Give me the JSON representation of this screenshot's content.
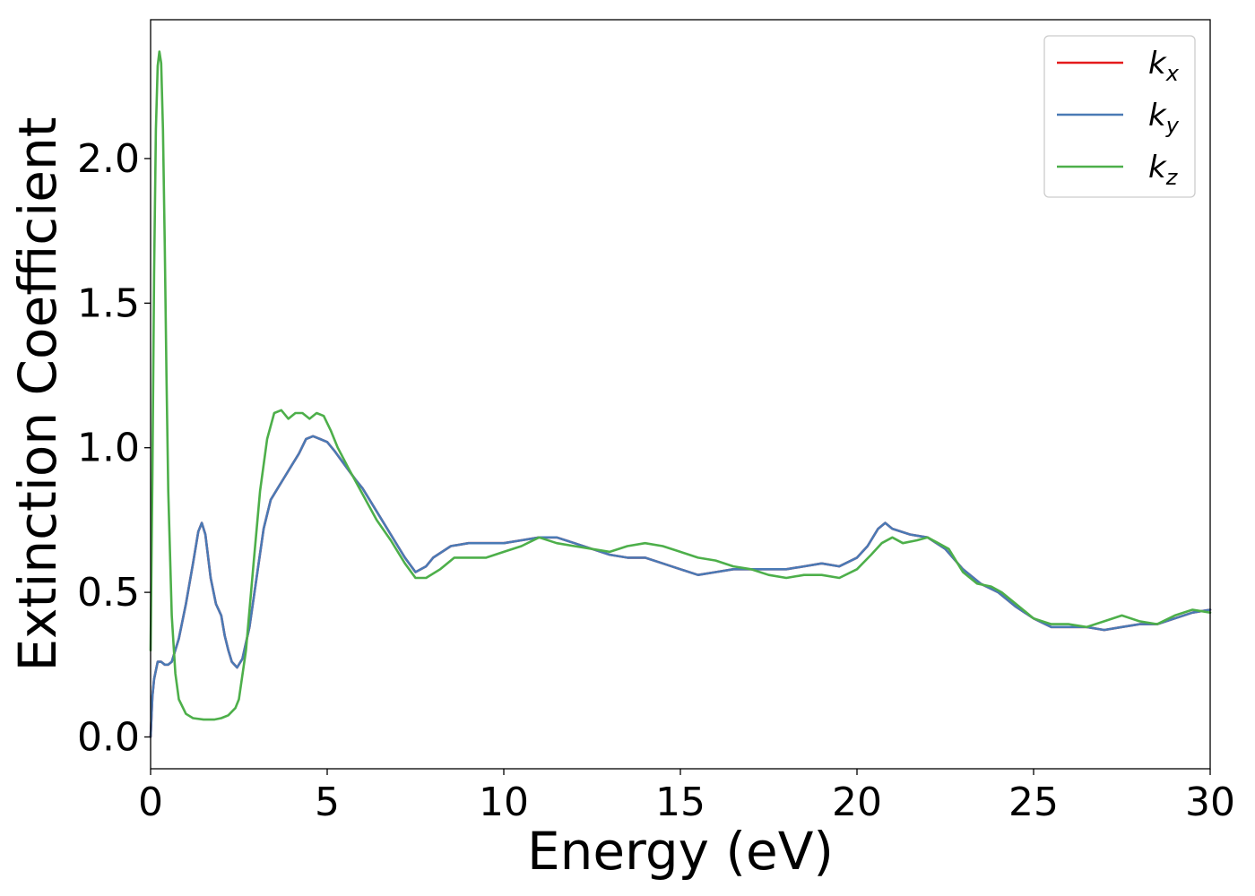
{
  "chart_data": {
    "type": "line",
    "title": "",
    "xlabel": "Energy (eV)",
    "ylabel": "Extinction Coefficient",
    "xlim": [
      0,
      30
    ],
    "ylim": [
      -0.11,
      2.48
    ],
    "xticks": [
      0,
      5,
      10,
      15,
      20,
      25,
      30
    ],
    "xtick_labels": [
      "0",
      "5",
      "10",
      "15",
      "20",
      "25",
      "30"
    ],
    "yticks": [
      0.0,
      0.5,
      1.0,
      1.5,
      2.0
    ],
    "ytick_labels": [
      "0.0",
      "0.5",
      "1.0",
      "1.5",
      "2.0"
    ],
    "grid": false,
    "legend_position": "top-right",
    "series": [
      {
        "name": "k_x",
        "legend_base": "k",
        "legend_sub": "x",
        "color": "#e41a1c",
        "x": [
          0,
          0.05,
          0.1,
          0.2,
          0.3,
          0.4,
          0.5,
          0.6,
          0.8,
          1.0,
          1.2,
          1.35,
          1.45,
          1.55,
          1.7,
          1.85,
          2.0,
          2.1,
          2.2,
          2.3,
          2.45,
          2.6,
          2.8,
          3.0,
          3.2,
          3.4,
          3.6,
          3.8,
          4.0,
          4.2,
          4.4,
          4.6,
          4.8,
          5.0,
          5.2,
          5.5,
          5.8,
          6.0,
          6.2,
          6.5,
          6.8,
          7.0,
          7.2,
          7.5,
          7.8,
          8.0,
          8.5,
          9.0,
          9.5,
          10.0,
          10.5,
          11.0,
          11.5,
          12.0,
          12.5,
          13.0,
          13.5,
          14.0,
          14.5,
          15.0,
          15.5,
          16.0,
          16.5,
          17.0,
          17.5,
          18.0,
          18.5,
          19.0,
          19.5,
          20.0,
          20.3,
          20.6,
          20.8,
          21.0,
          21.5,
          22.0,
          22.5,
          23.0,
          23.5,
          24.0,
          24.5,
          25.0,
          25.5,
          26.0,
          26.5,
          27.0,
          27.5,
          28.0,
          28.5,
          29.0,
          29.5,
          30.0
        ],
        "y": [
          0.0,
          0.14,
          0.2,
          0.26,
          0.26,
          0.25,
          0.25,
          0.26,
          0.34,
          0.46,
          0.6,
          0.71,
          0.74,
          0.7,
          0.55,
          0.46,
          0.42,
          0.35,
          0.3,
          0.26,
          0.24,
          0.27,
          0.38,
          0.55,
          0.72,
          0.82,
          0.86,
          0.9,
          0.94,
          0.98,
          1.03,
          1.04,
          1.03,
          1.02,
          0.99,
          0.94,
          0.89,
          0.86,
          0.82,
          0.76,
          0.7,
          0.66,
          0.62,
          0.57,
          0.59,
          0.62,
          0.66,
          0.67,
          0.67,
          0.67,
          0.68,
          0.69,
          0.69,
          0.67,
          0.65,
          0.63,
          0.62,
          0.62,
          0.6,
          0.58,
          0.56,
          0.57,
          0.58,
          0.58,
          0.58,
          0.58,
          0.59,
          0.6,
          0.59,
          0.62,
          0.66,
          0.72,
          0.74,
          0.72,
          0.7,
          0.69,
          0.65,
          0.58,
          0.53,
          0.5,
          0.45,
          0.41,
          0.38,
          0.38,
          0.38,
          0.37,
          0.38,
          0.39,
          0.39,
          0.41,
          0.43,
          0.44
        ]
      },
      {
        "name": "k_y",
        "legend_base": "k",
        "legend_sub": "y",
        "color": "#4a7ab5",
        "x": [
          0,
          0.05,
          0.1,
          0.2,
          0.3,
          0.4,
          0.5,
          0.6,
          0.8,
          1.0,
          1.2,
          1.35,
          1.45,
          1.55,
          1.7,
          1.85,
          2.0,
          2.1,
          2.2,
          2.3,
          2.45,
          2.6,
          2.8,
          3.0,
          3.2,
          3.4,
          3.6,
          3.8,
          4.0,
          4.2,
          4.4,
          4.6,
          4.8,
          5.0,
          5.2,
          5.5,
          5.8,
          6.0,
          6.2,
          6.5,
          6.8,
          7.0,
          7.2,
          7.5,
          7.8,
          8.0,
          8.5,
          9.0,
          9.5,
          10.0,
          10.5,
          11.0,
          11.5,
          12.0,
          12.5,
          13.0,
          13.5,
          14.0,
          14.5,
          15.0,
          15.5,
          16.0,
          16.5,
          17.0,
          17.5,
          18.0,
          18.5,
          19.0,
          19.5,
          20.0,
          20.3,
          20.6,
          20.8,
          21.0,
          21.5,
          22.0,
          22.5,
          23.0,
          23.5,
          24.0,
          24.5,
          25.0,
          25.5,
          26.0,
          26.5,
          27.0,
          27.5,
          28.0,
          28.5,
          29.0,
          29.5,
          30.0
        ],
        "y": [
          0.0,
          0.14,
          0.2,
          0.26,
          0.26,
          0.25,
          0.25,
          0.26,
          0.34,
          0.46,
          0.6,
          0.71,
          0.74,
          0.7,
          0.55,
          0.46,
          0.42,
          0.35,
          0.3,
          0.26,
          0.24,
          0.27,
          0.38,
          0.55,
          0.72,
          0.82,
          0.86,
          0.9,
          0.94,
          0.98,
          1.03,
          1.04,
          1.03,
          1.02,
          0.99,
          0.94,
          0.89,
          0.86,
          0.82,
          0.76,
          0.7,
          0.66,
          0.62,
          0.57,
          0.59,
          0.62,
          0.66,
          0.67,
          0.67,
          0.67,
          0.68,
          0.69,
          0.69,
          0.67,
          0.65,
          0.63,
          0.62,
          0.62,
          0.6,
          0.58,
          0.56,
          0.57,
          0.58,
          0.58,
          0.58,
          0.58,
          0.59,
          0.6,
          0.59,
          0.62,
          0.66,
          0.72,
          0.74,
          0.72,
          0.7,
          0.69,
          0.65,
          0.58,
          0.53,
          0.5,
          0.45,
          0.41,
          0.38,
          0.38,
          0.38,
          0.37,
          0.38,
          0.39,
          0.39,
          0.41,
          0.43,
          0.44
        ]
      },
      {
        "name": "k_z",
        "legend_base": "k",
        "legend_sub": "z",
        "color": "#4daf4a",
        "x": [
          0,
          0.05,
          0.1,
          0.15,
          0.2,
          0.25,
          0.3,
          0.35,
          0.4,
          0.45,
          0.5,
          0.6,
          0.7,
          0.8,
          1.0,
          1.2,
          1.5,
          1.8,
          2.0,
          2.2,
          2.4,
          2.5,
          2.7,
          2.9,
          3.1,
          3.3,
          3.5,
          3.7,
          3.9,
          4.1,
          4.3,
          4.5,
          4.7,
          4.9,
          5.1,
          5.3,
          5.6,
          6.0,
          6.4,
          6.8,
          7.2,
          7.5,
          7.8,
          8.2,
          8.6,
          9.0,
          9.5,
          10.0,
          10.5,
          11.0,
          11.5,
          12.0,
          12.5,
          13.0,
          13.5,
          14.0,
          14.5,
          15.0,
          15.5,
          16.0,
          16.5,
          17.0,
          17.5,
          18.0,
          18.5,
          19.0,
          19.5,
          20.0,
          20.4,
          20.7,
          21.0,
          21.3,
          21.7,
          22.0,
          22.3,
          22.6,
          23.0,
          23.4,
          23.8,
          24.1,
          24.5,
          25.0,
          25.5,
          26.0,
          26.5,
          27.0,
          27.5,
          28.0,
          28.5,
          29.0,
          29.5,
          30.0
        ],
        "y": [
          0.3,
          0.9,
          1.6,
          2.1,
          2.32,
          2.37,
          2.33,
          2.1,
          1.7,
          1.25,
          0.85,
          0.42,
          0.22,
          0.13,
          0.08,
          0.065,
          0.06,
          0.06,
          0.065,
          0.075,
          0.1,
          0.13,
          0.3,
          0.58,
          0.85,
          1.03,
          1.12,
          1.13,
          1.1,
          1.12,
          1.12,
          1.1,
          1.12,
          1.11,
          1.06,
          1.0,
          0.93,
          0.84,
          0.75,
          0.68,
          0.6,
          0.55,
          0.55,
          0.58,
          0.62,
          0.62,
          0.62,
          0.64,
          0.66,
          0.69,
          0.67,
          0.66,
          0.65,
          0.64,
          0.66,
          0.67,
          0.66,
          0.64,
          0.62,
          0.61,
          0.59,
          0.58,
          0.56,
          0.55,
          0.56,
          0.56,
          0.55,
          0.58,
          0.63,
          0.67,
          0.69,
          0.67,
          0.68,
          0.69,
          0.67,
          0.65,
          0.57,
          0.53,
          0.52,
          0.5,
          0.46,
          0.41,
          0.39,
          0.39,
          0.38,
          0.4,
          0.42,
          0.4,
          0.39,
          0.42,
          0.44,
          0.43
        ]
      }
    ]
  }
}
